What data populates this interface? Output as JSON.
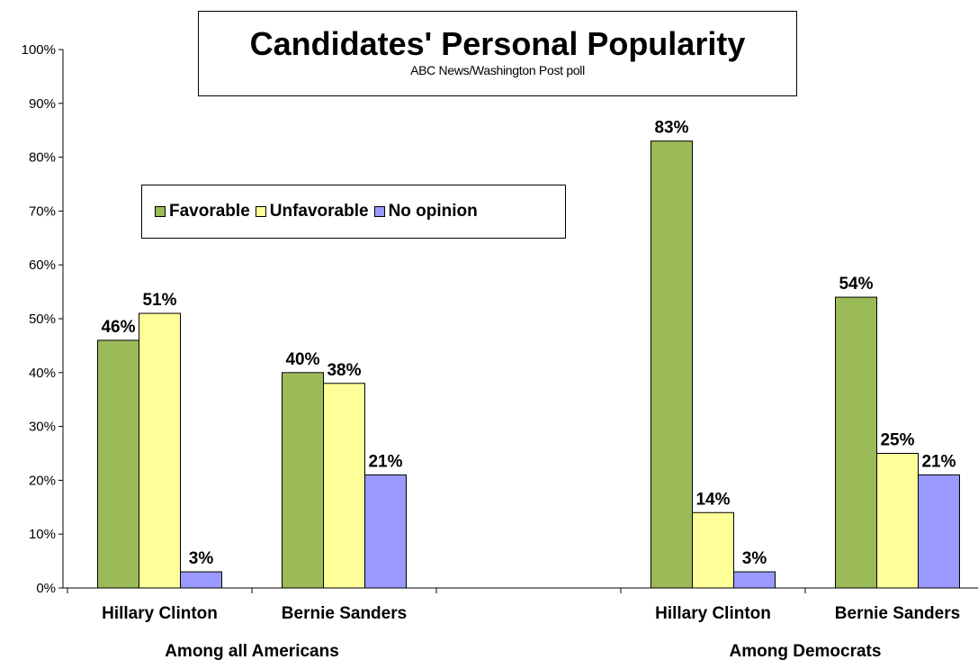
{
  "chart_data": {
    "type": "bar",
    "title": "Candidates' Personal Popularity",
    "subtitle": "ABC News/Washington  Post poll",
    "ylim": [
      0,
      100
    ],
    "y_ticks": [
      "0%",
      "10%",
      "20%",
      "30%",
      "40%",
      "50%",
      "60%",
      "70%",
      "80%",
      "90%",
      "100%"
    ],
    "legend_position": "upper-left inside plot",
    "grid": false,
    "groups": [
      {
        "label": "Among all Americans",
        "categories": [
          {
            "label": "Hillary Clinton",
            "values": [
              46,
              51,
              3
            ]
          },
          {
            "label": "Bernie Sanders",
            "values": [
              40,
              38,
              21
            ]
          }
        ]
      },
      {
        "label": "Among Democrats",
        "categories": [
          {
            "label": "Hillary Clinton",
            "values": [
              83,
              14,
              3
            ]
          },
          {
            "label": "Bernie Sanders",
            "values": [
              54,
              25,
              21
            ]
          }
        ]
      }
    ],
    "series": [
      {
        "name": "Favorable",
        "color": "#9BBB59"
      },
      {
        "name": "Unfavorable",
        "color": "#FFFF99"
      },
      {
        "name": "No opinion",
        "color": "#9999FF"
      }
    ]
  }
}
